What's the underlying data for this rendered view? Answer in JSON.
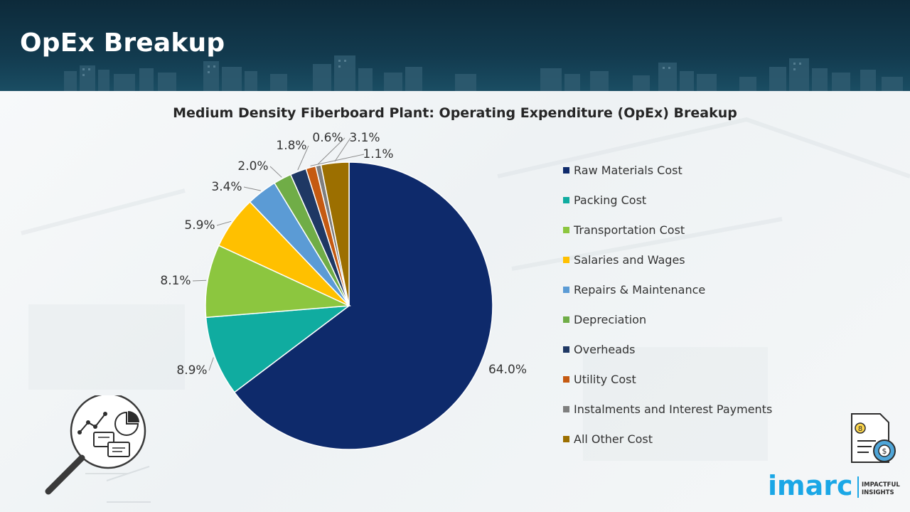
{
  "header": {
    "title": "OpEx Breakup"
  },
  "chart_data": {
    "type": "pie",
    "title": "Medium Density Fiberboard Plant: Operating Expenditure (OpEx) Breakup",
    "categories": [
      "Raw Materials Cost",
      "Packing Cost",
      "Transportation Cost",
      "Salaries and Wages",
      "Repairs & Maintenance",
      "Depreciation",
      "Overheads",
      "Utility Cost",
      "Instalments and Interest Payments",
      "All Other Cost"
    ],
    "values": [
      64.0,
      8.9,
      8.1,
      5.9,
      3.4,
      2.0,
      1.8,
      1.1,
      0.6,
      3.1
    ],
    "data_labels": [
      "64.0%",
      "8.9%",
      "8.1%",
      "5.9%",
      "3.4%",
      "2.0%",
      "1.8%",
      "1.1%",
      "0.6%",
      "3.1%"
    ],
    "colors": [
      "#0e2a6b",
      "#10aca0",
      "#8cc63f",
      "#ffc000",
      "#5b9bd5",
      "#70ad47",
      "#1f3864",
      "#c55a11",
      "#7f7f7f",
      "#9c6f00"
    ],
    "legend_position": "right",
    "start_angle_deg": 0,
    "direction": "clockwise"
  },
  "branding": {
    "logo_text": "imarc",
    "logo_tagline_1": "IMPACTFUL",
    "logo_tagline_2": "INSIGHTS"
  },
  "icons": {
    "bottom_left": "magnifier-analytics-icon",
    "bottom_right": "cost-document-icon"
  }
}
